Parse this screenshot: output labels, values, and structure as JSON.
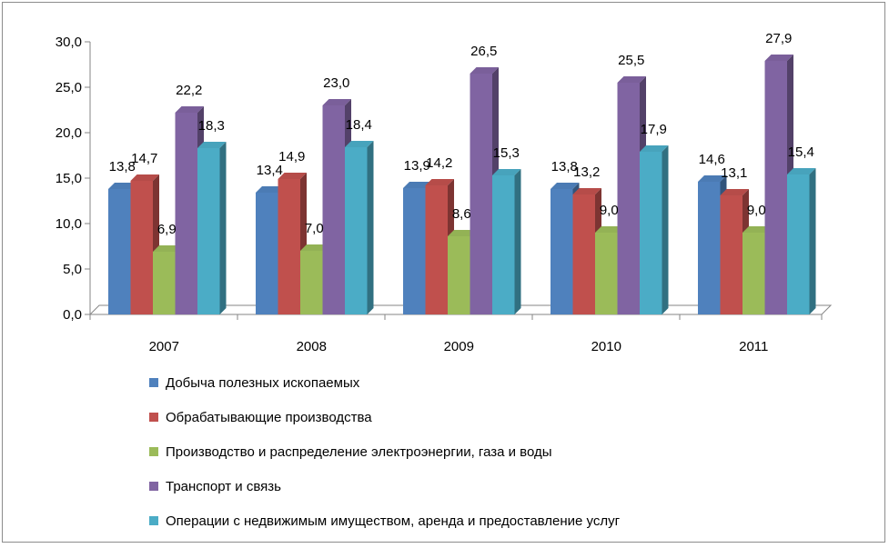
{
  "chart_data": {
    "type": "bar",
    "categories": [
      "2007",
      "2008",
      "2009",
      "2010",
      "2011"
    ],
    "series": [
      {
        "name": "Добыча полезных ископаемых",
        "values": [
          13.8,
          13.4,
          13.9,
          13.8,
          14.6
        ],
        "labels": [
          "13,8",
          "13,4",
          "13,9",
          "13,8",
          "14,6"
        ],
        "color": "#4F81BD"
      },
      {
        "name": "Обрабатывающие производства",
        "values": [
          14.7,
          14.9,
          14.2,
          13.2,
          13.1
        ],
        "labels": [
          "14,7",
          "14,9",
          "14,2",
          "13,2",
          "13,1"
        ],
        "color": "#C0504D"
      },
      {
        "name": "Производство и распределение электроэнергии,  газа и воды",
        "values": [
          6.9,
          7.0,
          8.6,
          9.0,
          9.0
        ],
        "labels": [
          "6,9",
          "7,0",
          "8,6",
          "9,0",
          "9,0"
        ],
        "color": "#9BBB59"
      },
      {
        "name": "Транспорт и связь",
        "values": [
          22.2,
          23.0,
          26.5,
          25.5,
          27.9
        ],
        "labels": [
          "22,2",
          "23,0",
          "26,5",
          "25,5",
          "27,9"
        ],
        "color": "#8064A2"
      },
      {
        "name": "Операции с недвижимым имуществом, аренда и  предоставление услуг",
        "values": [
          18.3,
          18.4,
          15.3,
          17.9,
          15.4
        ],
        "labels": [
          "18,3",
          "18,4",
          "15,3",
          "17,9",
          "15,4"
        ],
        "color": "#4BACC6"
      }
    ],
    "y_ticks": [
      "0,0",
      "5,0",
      "10,0",
      "15,0",
      "20,0",
      "25,0",
      "30,0"
    ],
    "ylim": [
      0,
      30
    ],
    "legend_position": "bottom",
    "grid": false
  }
}
